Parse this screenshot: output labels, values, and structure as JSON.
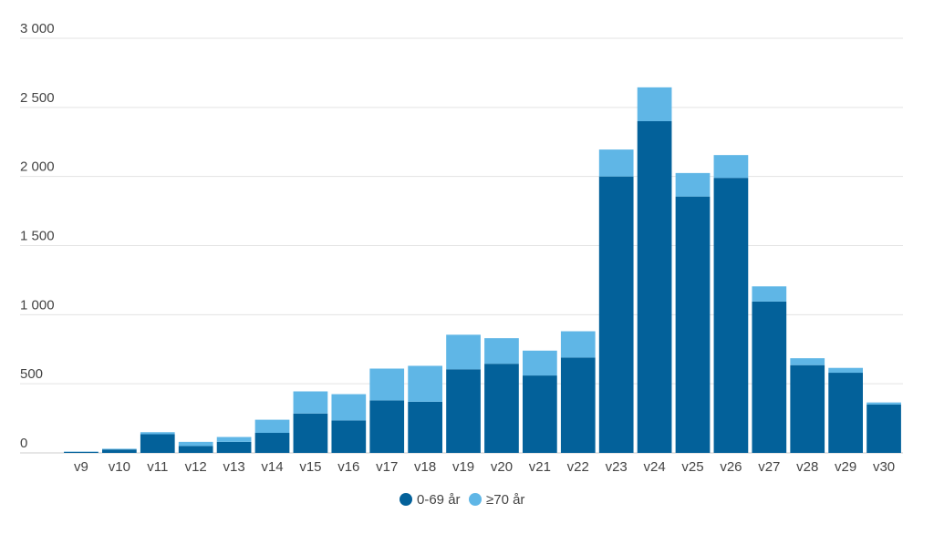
{
  "chart_data": {
    "type": "bar",
    "stacked": true,
    "categories": [
      "v9",
      "v10",
      "v11",
      "v12",
      "v13",
      "v14",
      "v15",
      "v16",
      "v17",
      "v18",
      "v19",
      "v20",
      "v21",
      "v22",
      "v23",
      "v24",
      "v25",
      "v26",
      "v27",
      "v28",
      "v29",
      "v30"
    ],
    "series": [
      {
        "name": "0-69 år",
        "color": "#03619a",
        "values": [
          8,
          25,
          135,
          50,
          80,
          145,
          285,
          235,
          380,
          370,
          605,
          645,
          560,
          690,
          2000,
          2400,
          1855,
          1990,
          1095,
          635,
          580,
          350
        ]
      },
      {
        "name": "≥70 år",
        "color": "#5fb6e6",
        "values": [
          2,
          5,
          15,
          30,
          35,
          95,
          160,
          190,
          230,
          260,
          250,
          185,
          180,
          190,
          195,
          245,
          170,
          165,
          110,
          50,
          35,
          15
        ]
      }
    ],
    "ylim": [
      0,
      3000
    ],
    "yticks": [
      0,
      500,
      1000,
      1500,
      2000,
      2500,
      3000
    ],
    "ytick_labels": [
      "0",
      "500",
      "1 000",
      "1 500",
      "2 000",
      "2 500",
      "3 000"
    ],
    "grid": true,
    "legend": "bottom-center",
    "title": "",
    "xlabel": "",
    "ylabel": ""
  }
}
